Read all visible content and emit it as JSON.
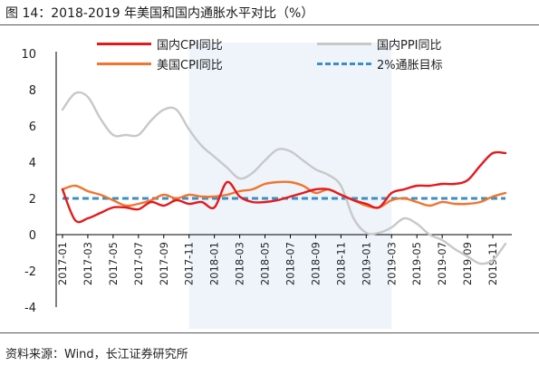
{
  "header": {
    "title": "图 14：2018-2019 年美国和国内通胀水平对比（%）"
  },
  "footer": {
    "source": "资料来源：Wind，长江证券研究所"
  },
  "colors": {
    "cn_cpi": "#e31a1c",
    "us_cpi": "#f0752e",
    "cn_ppi": "#c8c8c8",
    "target": "#3b8fc4",
    "shade": "#eef4fa",
    "axis": "#000000",
    "ink": "#222222"
  },
  "chart_data": {
    "type": "line",
    "title": "",
    "xlabel": "",
    "ylabel": "",
    "ylim": [
      -4,
      10
    ],
    "y_ticks": [
      -4,
      -2,
      0,
      2,
      4,
      6,
      8,
      10
    ],
    "x_tick_labels": [
      "2017-01",
      "2017-03",
      "2017-05",
      "2017-07",
      "2017-09",
      "2017-11",
      "2018-01",
      "2018-03",
      "2018-05",
      "2018-07",
      "2018-09",
      "2018-11",
      "2019-01",
      "2019-03",
      "2019-05",
      "2019-07",
      "2019-09",
      "2019-11"
    ],
    "shaded_range": [
      "2017-11",
      "2019-03"
    ],
    "grid": false,
    "legend_position": "top",
    "x": [
      "2017-01",
      "2017-02",
      "2017-03",
      "2017-04",
      "2017-05",
      "2017-06",
      "2017-07",
      "2017-08",
      "2017-09",
      "2017-10",
      "2017-11",
      "2017-12",
      "2018-01",
      "2018-02",
      "2018-03",
      "2018-04",
      "2018-05",
      "2018-06",
      "2018-07",
      "2018-08",
      "2018-09",
      "2018-10",
      "2018-11",
      "2018-12",
      "2019-01",
      "2019-02",
      "2019-03",
      "2019-04",
      "2019-05",
      "2019-06",
      "2019-07",
      "2019-08",
      "2019-09",
      "2019-10",
      "2019-11",
      "2019-12"
    ],
    "series": [
      {
        "name": "国内CPI同比",
        "color_key": "cn_cpi",
        "style": "solid",
        "values": [
          2.5,
          0.8,
          0.9,
          1.2,
          1.5,
          1.5,
          1.4,
          1.8,
          1.6,
          1.9,
          1.7,
          1.8,
          1.5,
          2.9,
          2.1,
          1.8,
          1.8,
          1.9,
          2.1,
          2.3,
          2.5,
          2.5,
          2.2,
          1.9,
          1.7,
          1.5,
          2.3,
          2.5,
          2.7,
          2.7,
          2.8,
          2.8,
          3.0,
          3.8,
          4.5,
          4.5
        ]
      },
      {
        "name": "国内PPI同比",
        "color_key": "cn_ppi",
        "style": "solid",
        "values": [
          6.9,
          7.8,
          7.6,
          6.4,
          5.5,
          5.5,
          5.5,
          6.3,
          6.9,
          6.9,
          5.8,
          4.9,
          4.3,
          3.7,
          3.1,
          3.4,
          4.1,
          4.7,
          4.6,
          4.1,
          3.6,
          3.3,
          2.7,
          0.9,
          0.1,
          0.1,
          0.4,
          0.9,
          0.6,
          0.0,
          -0.3,
          -0.8,
          -1.2,
          -1.6,
          -1.4,
          -0.5
        ]
      },
      {
        "name": "美国CPI同比",
        "color_key": "us_cpi",
        "style": "solid",
        "values": [
          2.5,
          2.7,
          2.4,
          2.2,
          1.9,
          1.6,
          1.7,
          1.9,
          2.2,
          2.0,
          2.2,
          2.1,
          2.1,
          2.2,
          2.4,
          2.5,
          2.8,
          2.9,
          2.9,
          2.7,
          2.3,
          2.5,
          2.2,
          1.9,
          1.6,
          1.5,
          1.9,
          2.0,
          1.8,
          1.6,
          1.8,
          1.7,
          1.7,
          1.8,
          2.1,
          2.3
        ]
      },
      {
        "name": "2%通胀目标",
        "color_key": "target",
        "style": "dashed",
        "values": [
          2,
          2,
          2,
          2,
          2,
          2,
          2,
          2,
          2,
          2,
          2,
          2,
          2,
          2,
          2,
          2,
          2,
          2,
          2,
          2,
          2,
          2,
          2,
          2,
          2,
          2,
          2,
          2,
          2,
          2,
          2,
          2,
          2,
          2,
          2,
          2
        ]
      }
    ]
  }
}
